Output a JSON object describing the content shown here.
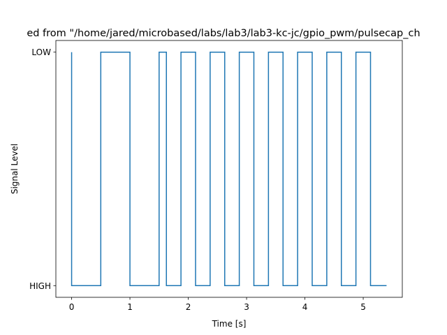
{
  "chart_data": {
    "type": "line",
    "title": "ed from \"/home/jared/microbased/labs/lab3/lab3-kc-jc/gpio_pwm/pulsecap_ch",
    "xlabel": "Time [s]",
    "ylabel": "Signal Level",
    "xlim": [
      -0.27,
      5.67
    ],
    "ylim": [
      -0.05,
      1.05
    ],
    "x_ticks": [
      0,
      1,
      2,
      3,
      4,
      5
    ],
    "x_tick_labels": [
      "0",
      "1",
      "2",
      "3",
      "4",
      "5"
    ],
    "y_ticks": [
      0,
      1
    ],
    "y_tick_labels": [
      "HIGH",
      "LOW"
    ],
    "grid": false,
    "series": [
      {
        "color": "#1f77b4",
        "drawstyle": "steps",
        "x": [
          0,
          0,
          0.5,
          0.5,
          1.0,
          1.0,
          1.5,
          1.5,
          1.625,
          1.625,
          1.875,
          1.875,
          2.125,
          2.125,
          2.375,
          2.375,
          2.625,
          2.625,
          2.875,
          2.875,
          3.125,
          3.125,
          3.375,
          3.375,
          3.625,
          3.625,
          3.875,
          3.875,
          4.125,
          4.125,
          4.375,
          4.375,
          4.625,
          4.625,
          4.875,
          4.875,
          5.125,
          5.125,
          5.4
        ],
        "y": [
          1,
          0,
          0,
          1,
          1,
          0,
          0,
          1,
          1,
          0,
          0,
          1,
          1,
          0,
          0,
          1,
          1,
          0,
          0,
          1,
          1,
          0,
          0,
          1,
          1,
          0,
          0,
          1,
          1,
          0,
          0,
          1,
          1,
          0,
          0,
          1,
          1,
          0,
          0
        ]
      }
    ]
  }
}
